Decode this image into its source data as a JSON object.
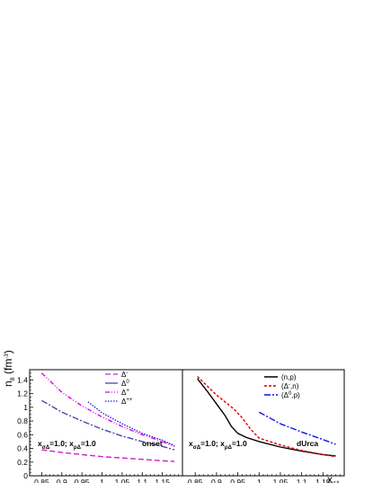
{
  "chart_data": [
    {
      "type": "line",
      "panel": "left",
      "ylabel": "n_B (fm^-3)",
      "ylabel_main": "n",
      "ylabel_sub": "B",
      "ylabel_unit": " (fm",
      "ylabel_exp": "-3",
      "ylabel_close": ")",
      "xlim": [
        0.82,
        1.2
      ],
      "ylim": [
        0,
        1.55
      ],
      "grid": false,
      "legend_position": "top-center",
      "x_ticks": [
        "0.85",
        "0.9",
        "0.95",
        "1",
        "1.05",
        "1.1",
        "1.15"
      ],
      "y_ticks": [
        "0",
        "0.2",
        "0.4",
        "0.6",
        "0.8",
        "1",
        "1.2",
        "1.4"
      ],
      "annotation_left": "x",
      "annotation_left_sub": "σΔ",
      "annotation_mid": "=1.0;  x",
      "annotation_mid_sub": "ρΔ",
      "annotation_right": "=1.0",
      "annotation_tag": "onset",
      "series": [
        {
          "name": "Δ⁻",
          "legend_prefix": "-",
          "legend_main": "Δ",
          "legend_sup": "-",
          "color": "#d020d0",
          "style": "long-dash",
          "x": [
            0.85,
            0.9,
            0.95,
            1.0,
            1.05,
            1.1,
            1.15,
            1.18
          ],
          "y": [
            0.38,
            0.34,
            0.31,
            0.28,
            0.26,
            0.24,
            0.22,
            0.21
          ]
        },
        {
          "name": "Δ⁰",
          "legend_main": "Δ",
          "legend_sup": "0",
          "color": "#4848a8",
          "style": "dash-dot",
          "x": [
            0.85,
            0.9,
            0.95,
            1.0,
            1.05,
            1.1,
            1.15,
            1.18
          ],
          "y": [
            1.1,
            0.93,
            0.8,
            0.68,
            0.58,
            0.5,
            0.43,
            0.38
          ]
        },
        {
          "name": "Δ⁺",
          "legend_main": "Δ",
          "legend_sup": "+",
          "color": "#e000e0",
          "style": "dash-dot-dot",
          "x": [
            0.85,
            0.9,
            0.95,
            1.0,
            1.05,
            1.1,
            1.15,
            1.18
          ],
          "y": [
            1.5,
            1.22,
            1.02,
            0.86,
            0.72,
            0.6,
            0.5,
            0.43
          ]
        },
        {
          "name": "Δ⁺⁺",
          "legend_main": "Δ",
          "legend_sup": "++",
          "color": "#2020e0",
          "style": "dotted",
          "x": [
            0.965,
            1.0,
            1.05,
            1.1,
            1.15,
            1.18
          ],
          "y": [
            1.08,
            0.92,
            0.76,
            0.62,
            0.52,
            0.44
          ]
        }
      ]
    },
    {
      "type": "line",
      "panel": "right",
      "xlabel": "x_σΔ",
      "xlabel_main": "x",
      "xlabel_sub": "σΔ",
      "xlim": [
        0.82,
        1.2
      ],
      "ylim": [
        0,
        1.55
      ],
      "grid": false,
      "legend_position": "top-right",
      "x_ticks": [
        "0.85",
        "0.9",
        "0.95",
        "1",
        "1.05",
        "1.1",
        "1.15"
      ],
      "annotation_left": "x",
      "annotation_left_sub": "σΔ",
      "annotation_mid": "=1.0;  x",
      "annotation_mid_sub": "ρΔ",
      "annotation_right": "=1.0",
      "annotation_tag": "dUrca",
      "series": [
        {
          "name": "(n,p)",
          "color": "#000000",
          "style": "solid",
          "x": [
            0.855,
            0.88,
            0.9,
            0.92,
            0.935,
            0.95,
            0.97,
            1.0,
            1.05,
            1.1,
            1.15,
            1.18
          ],
          "y": [
            1.42,
            1.22,
            1.05,
            0.88,
            0.72,
            0.62,
            0.56,
            0.5,
            0.42,
            0.36,
            0.31,
            0.29
          ]
        },
        {
          "name": "(Δ⁻,n)",
          "legend_pre": "(Δ",
          "legend_sup": "-",
          "legend_post": ",n)",
          "color": "#e00000",
          "style": "dashed",
          "x": [
            0.855,
            0.88,
            0.9,
            0.92,
            0.94,
            0.96,
            0.98,
            1.0,
            1.05,
            1.1,
            1.15,
            1.18
          ],
          "y": [
            1.45,
            1.3,
            1.18,
            1.08,
            0.98,
            0.85,
            0.68,
            0.55,
            0.45,
            0.37,
            0.31,
            0.28
          ]
        },
        {
          "name": "(Δ⁰,p)",
          "legend_pre": "(Δ",
          "legend_sup": "0",
          "legend_post": ",p)",
          "color": "#1010e0",
          "style": "dash-dot",
          "x": [
            1.0,
            1.05,
            1.1,
            1.15,
            1.18
          ],
          "y": [
            0.93,
            0.76,
            0.64,
            0.53,
            0.46
          ]
        }
      ]
    }
  ]
}
